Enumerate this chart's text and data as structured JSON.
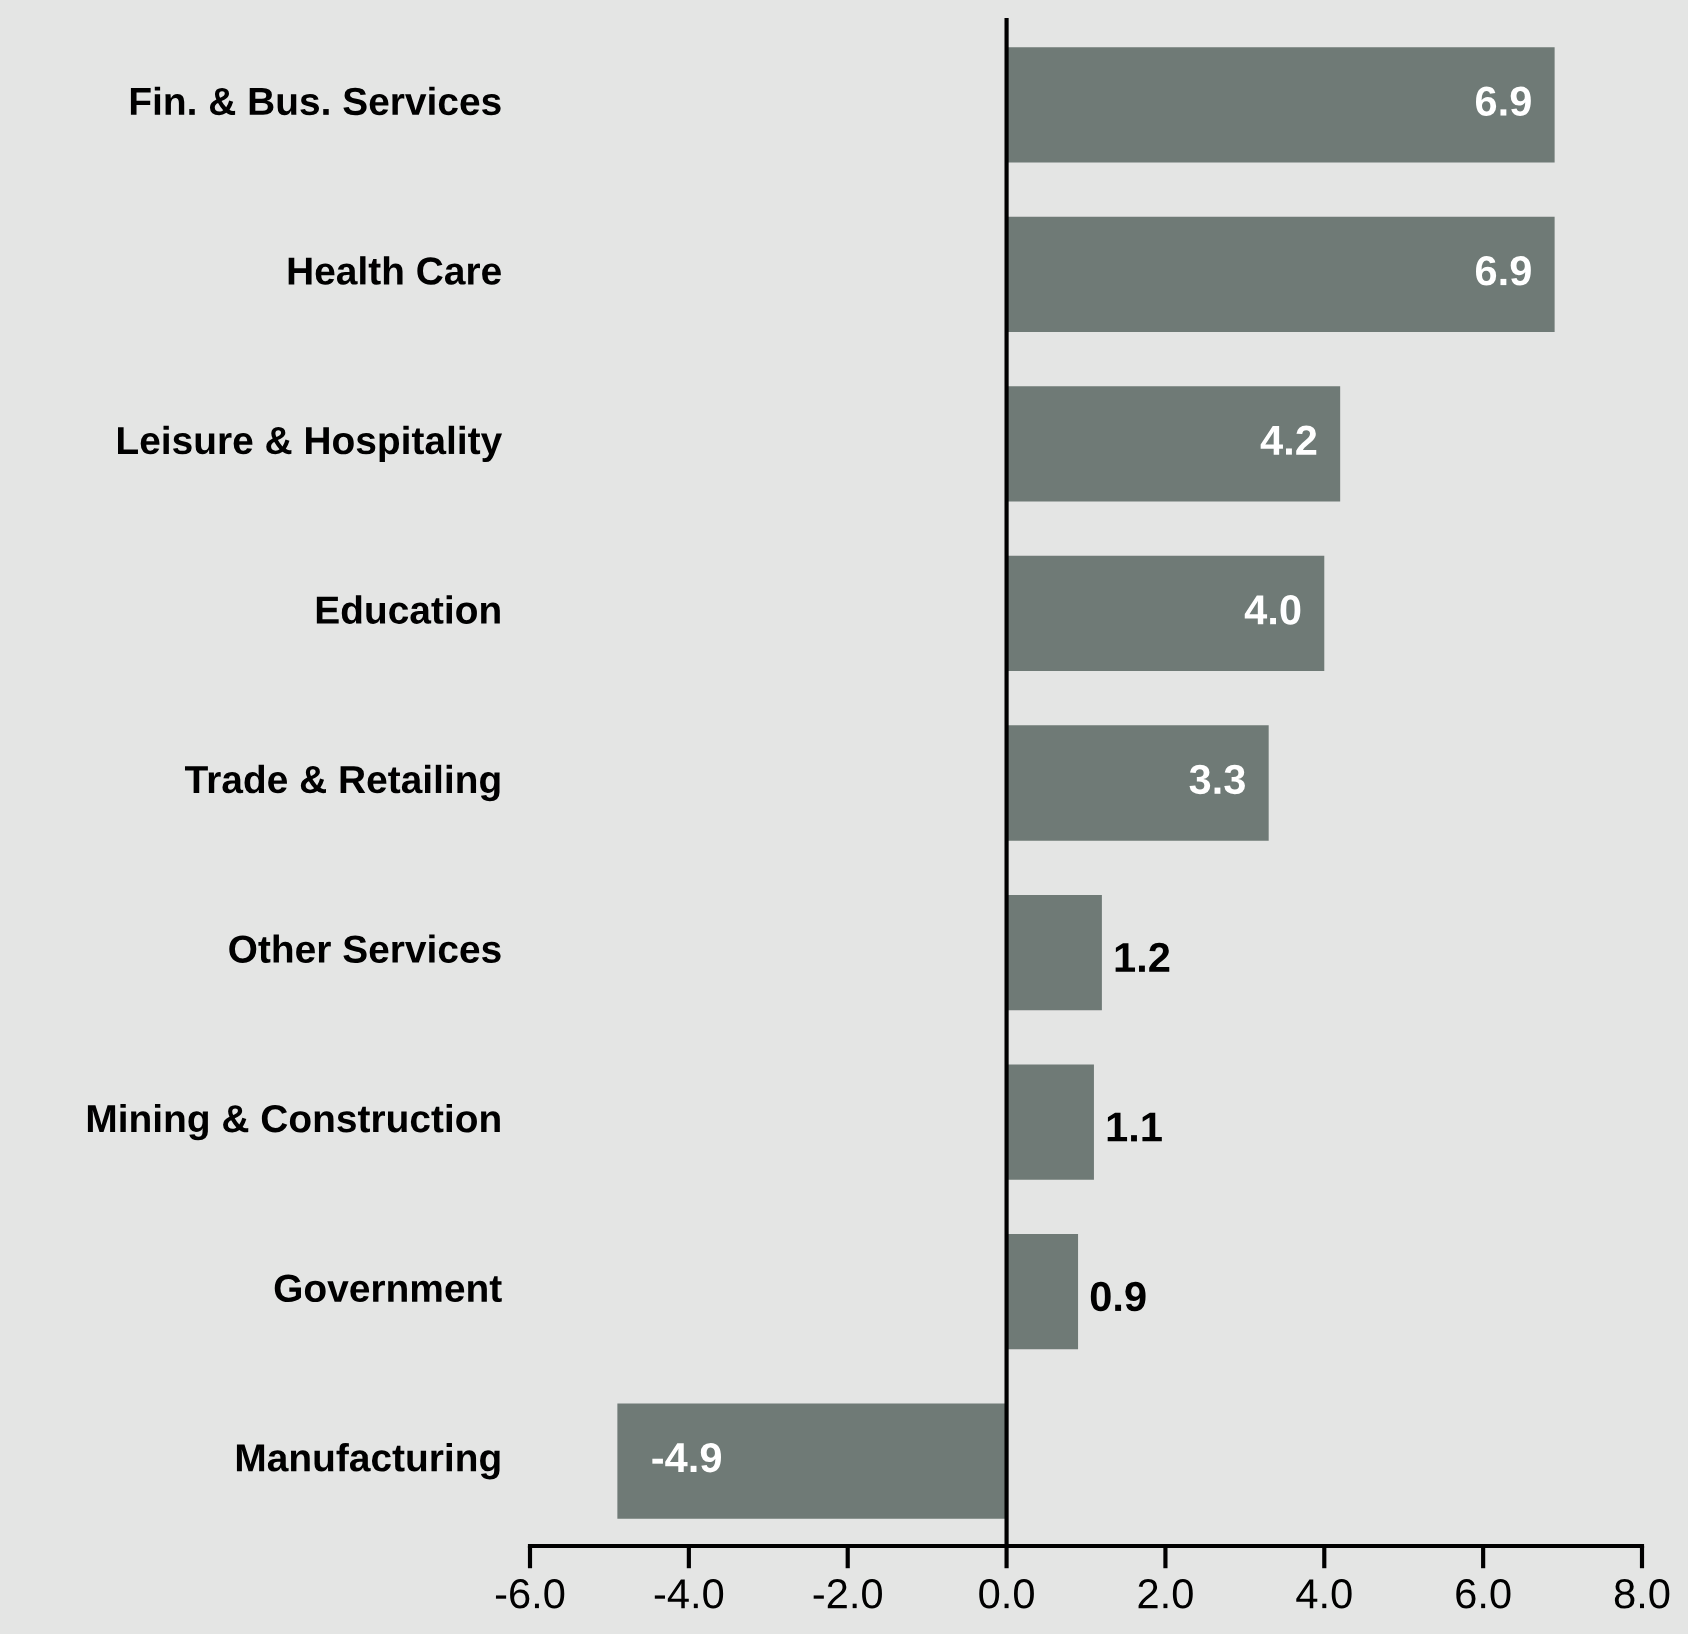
{
  "chart_data": {
    "type": "bar",
    "orientation": "horizontal",
    "categories": [
      "Fin. & Bus. Services",
      "Health Care",
      "Leisure & Hospitality",
      "Education",
      "Trade & Retailing",
      "Other Services",
      "Mining & Construction",
      "Government",
      "Manufacturing"
    ],
    "values": [
      6.9,
      6.9,
      4.2,
      4.0,
      3.3,
      1.2,
      1.1,
      0.9,
      -4.9
    ],
    "color": "#6f7a76",
    "xlim": [
      -6,
      8
    ],
    "xticks": [
      {
        "value": -6,
        "label": "-6.0"
      },
      {
        "value": -4,
        "label": "-4.0"
      },
      {
        "value": -2,
        "label": "-2.0"
      },
      {
        "value": 0,
        "label": "0.0"
      },
      {
        "value": 2,
        "label": "2.0"
      },
      {
        "value": 4,
        "label": "4.0"
      },
      {
        "value": 6,
        "label": "6.0"
      },
      {
        "value": 8,
        "label": "8.0"
      }
    ],
    "value_labels": [
      "6.9",
      "6.9",
      "4.2",
      "4.0",
      "3.3",
      "1.2",
      "1.1",
      "0.9",
      "-4.9"
    ],
    "legend": false
  }
}
